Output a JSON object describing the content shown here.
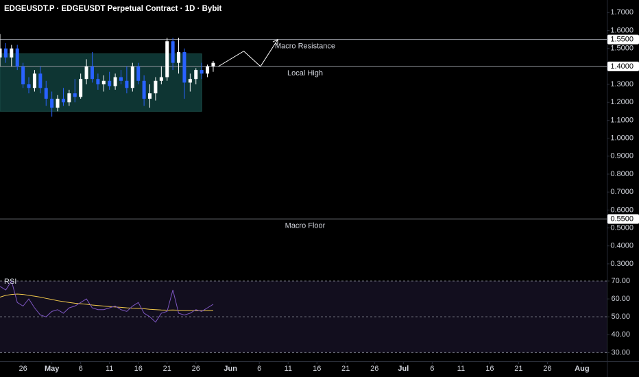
{
  "chart_data": {
    "type": "candlestick",
    "title": "EDGEUSDT.P · EDGEUSDT Perpetual Contract · 1D · Bybit",
    "xlim": [
      0,
      105.3
    ],
    "xticks": [
      {
        "value": 4,
        "label": "26"
      },
      {
        "value": 9,
        "label": "May"
      },
      {
        "value": 14,
        "label": "6"
      },
      {
        "value": 19,
        "label": "11"
      },
      {
        "value": 24,
        "label": "16"
      },
      {
        "value": 29,
        "label": "21"
      },
      {
        "value": 34,
        "label": "26"
      },
      {
        "value": 40,
        "label": "Jun"
      },
      {
        "value": 45,
        "label": "6"
      },
      {
        "value": 50,
        "label": "11"
      },
      {
        "value": 55,
        "label": "16"
      },
      {
        "value": 60,
        "label": "21"
      },
      {
        "value": 65,
        "label": "26"
      },
      {
        "value": 70,
        "label": "Jul"
      },
      {
        "value": 75,
        "label": "6"
      },
      {
        "value": 80,
        "label": "11"
      },
      {
        "value": 85,
        "label": "16"
      },
      {
        "value": 90,
        "label": "21"
      },
      {
        "value": 95,
        "label": "26"
      },
      {
        "value": 101,
        "label": "Aug"
      }
    ],
    "ylim": [
      0.25,
      1.77
    ],
    "yticks": [
      {
        "value": 0.3,
        "label": "0.3000"
      },
      {
        "value": 0.4,
        "label": "0.4000"
      },
      {
        "value": 0.5,
        "label": "0.5000"
      },
      {
        "value": 0.6,
        "label": "0.6000"
      },
      {
        "value": 0.7,
        "label": "0.7000"
      },
      {
        "value": 0.8,
        "label": "0.8000"
      },
      {
        "value": 0.9,
        "label": "0.9000"
      },
      {
        "value": 1.0,
        "label": "1.0000"
      },
      {
        "value": 1.1,
        "label": "1.1000"
      },
      {
        "value": 1.2,
        "label": "1.2000"
      },
      {
        "value": 1.3,
        "label": "1.3000"
      },
      {
        "value": 1.5,
        "label": "1.5000"
      },
      {
        "value": 1.6,
        "label": "1.6000"
      },
      {
        "value": 1.7,
        "label": "1.7000"
      }
    ],
    "up_color": "#ffffff",
    "down_color": "#2962ff",
    "candles": {
      "x": [
        0,
        1,
        2,
        3,
        4,
        5,
        6,
        7,
        8,
        9,
        10,
        11,
        12,
        13,
        14,
        15,
        16,
        17,
        18,
        19,
        20,
        21,
        22,
        23,
        24,
        25,
        26,
        27,
        28,
        29,
        30,
        31,
        32,
        33,
        34,
        35,
        36,
        37
      ],
      "open": [
        1.45,
        1.5,
        1.45,
        1.5,
        1.4,
        1.3,
        1.28,
        1.36,
        1.28,
        1.22,
        1.17,
        1.22,
        1.2,
        1.25,
        1.23,
        1.33,
        1.4,
        1.33,
        1.3,
        1.32,
        1.29,
        1.34,
        1.32,
        1.28,
        1.4,
        1.32,
        1.22,
        1.25,
        1.32,
        1.34,
        1.54,
        1.42,
        1.48,
        1.31,
        1.33,
        1.38,
        1.36,
        1.4
      ],
      "high": [
        1.58,
        1.53,
        1.52,
        1.52,
        1.42,
        1.34,
        1.38,
        1.4,
        1.32,
        1.26,
        1.24,
        1.28,
        1.27,
        1.33,
        1.36,
        1.44,
        1.48,
        1.36,
        1.35,
        1.37,
        1.36,
        1.38,
        1.4,
        1.42,
        1.42,
        1.35,
        1.3,
        1.34,
        1.4,
        1.56,
        1.56,
        1.56,
        1.5,
        1.36,
        1.39,
        1.42,
        1.41,
        1.43
      ],
      "low": [
        1.4,
        1.42,
        1.4,
        1.38,
        1.28,
        1.25,
        1.26,
        1.25,
        1.18,
        1.12,
        1.15,
        1.18,
        1.18,
        1.2,
        1.22,
        1.3,
        1.31,
        1.27,
        1.26,
        1.27,
        1.27,
        1.3,
        1.25,
        1.26,
        1.3,
        1.18,
        1.17,
        1.21,
        1.3,
        1.32,
        1.38,
        1.36,
        1.22,
        1.26,
        1.3,
        1.33,
        1.34,
        1.37
      ],
      "close": [
        1.5,
        1.45,
        1.5,
        1.4,
        1.3,
        1.28,
        1.36,
        1.28,
        1.22,
        1.17,
        1.22,
        1.2,
        1.25,
        1.23,
        1.33,
        1.4,
        1.33,
        1.3,
        1.32,
        1.29,
        1.34,
        1.32,
        1.28,
        1.4,
        1.32,
        1.22,
        1.25,
        1.32,
        1.34,
        1.54,
        1.42,
        1.48,
        1.31,
        1.33,
        1.38,
        1.36,
        1.4,
        1.42
      ]
    },
    "range_box": {
      "x": [
        0,
        35
      ],
      "y": [
        1.15,
        1.47
      ],
      "color": "#0e3533"
    },
    "projection": {
      "x": [
        37.9,
        42.3,
        45.2,
        48.2
      ],
      "y": [
        1.4,
        1.485,
        1.4,
        1.55
      ],
      "color": "#ffffff"
    },
    "levels": [
      {
        "name": "Macro Resistance",
        "value": 1.55,
        "label": "1.5500"
      },
      {
        "name": "Local High",
        "value": 1.4,
        "label": "1.4000"
      },
      {
        "name": "Macro Floor",
        "value": 0.55,
        "label": "0.5500"
      }
    ],
    "rsi": {
      "name": "RSI",
      "color": "#7e57c2",
      "ma_color": "#f2c94c",
      "ylim": [
        24,
        72.3
      ],
      "yticks": [
        {
          "value": 30,
          "label": "30.00"
        },
        {
          "value": 40,
          "label": "40.00"
        },
        {
          "value": 50,
          "label": "50.00"
        },
        {
          "value": 60,
          "label": "60.00"
        },
        {
          "value": 70,
          "label": "70.00"
        }
      ],
      "bands": [
        30,
        50,
        70
      ],
      "values": [
        67,
        65,
        70,
        58,
        56,
        60,
        55,
        51,
        50,
        53,
        54,
        52,
        55,
        56,
        58,
        60,
        55,
        54,
        54,
        55,
        56,
        54,
        53,
        56,
        58,
        52,
        50,
        47,
        52,
        53,
        65,
        52,
        51,
        52,
        54,
        53,
        55,
        57
      ],
      "ma": [
        61,
        62,
        62.5,
        62.7,
        62.5,
        62,
        61.5,
        61,
        60.3,
        59.7,
        59,
        58.5,
        58,
        57.6,
        57.3,
        57,
        56.6,
        56.3,
        56,
        55.7,
        55.5,
        55.3,
        55,
        54.8,
        54.7,
        54.5,
        54.2,
        54,
        53.8,
        53.7,
        53.8,
        53.7,
        53.6,
        53.5,
        53.4,
        53.4,
        53.5,
        53.6
      ]
    }
  }
}
